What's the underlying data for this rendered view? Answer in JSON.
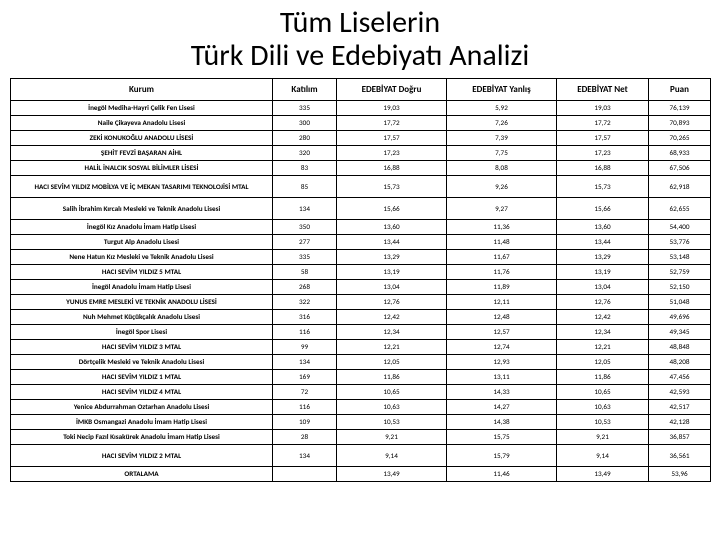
{
  "title": {
    "line1": "Tüm Liselerin",
    "line2": "Türk Dili ve Edebiyatı Analizi"
  },
  "table": {
    "columns": [
      "Kurum",
      "Katılım",
      "EDEBİYAT Doğru",
      "EDEBİYAT Yanlış",
      "EDEBİYAT Net",
      "Puan"
    ],
    "row_font_size": 7.2,
    "header_font_size": 9,
    "border_color": "#000000",
    "background_color": "#ffffff",
    "tall_rows": [
      5,
      6,
      22
    ],
    "rows": [
      [
        "İnegöl Mediha-Hayri Çelik Fen Lisesi",
        "335",
        "19,03",
        "5,92",
        "19,03",
        "76,139"
      ],
      [
        "Naile Çikayeva Anadolu Lisesi",
        "300",
        "17,72",
        "7,26",
        "17,72",
        "70,893"
      ],
      [
        "ZEKİ KONUKOĞLU ANADOLU LİSESİ",
        "280",
        "17,57",
        "7,39",
        "17,57",
        "70,265"
      ],
      [
        "ŞEHİT FEVZİ BAŞARAN AİHL",
        "320",
        "17,23",
        "7,75",
        "17,23",
        "68,933"
      ],
      [
        "HALİL İNALCIK SOSYAL BİLİMLER LİSESİ",
        "83",
        "16,88",
        "8,08",
        "16,88",
        "67,506"
      ],
      [
        "HACI SEVİM YILDIZ MOBİLYA VE İÇ MEKAN TASARIMI TEKNOLOJİSİ MTAL",
        "85",
        "15,73",
        "9,26",
        "15,73",
        "62,918"
      ],
      [
        "Salih İbrahim Kırcalı Mesleki ve Teknik Anadolu Lisesi",
        "134",
        "15,66",
        "9,27",
        "15,66",
        "62,655"
      ],
      [
        "İnegöl Kız Anadolu İmam Hatip Lisesi",
        "350",
        "13,60",
        "11,36",
        "13,60",
        "54,400"
      ],
      [
        "Turgut Alp Anadolu Lisesi",
        "277",
        "13,44",
        "11,48",
        "13,44",
        "53,776"
      ],
      [
        "Nene Hatun Kız Mesleki ve Teknik Anadolu Lisesi",
        "335",
        "13,29",
        "11,67",
        "13,29",
        "53,148"
      ],
      [
        "HACI SEVİM YILDIZ 5 MTAL",
        "58",
        "13,19",
        "11,76",
        "13,19",
        "52,759"
      ],
      [
        "İnegöl Anadolu İmam Hatip Lisesi",
        "268",
        "13,04",
        "11,89",
        "13,04",
        "52,150"
      ],
      [
        "YUNUS EMRE MESLEKİ VE TEKNİK ANADOLU LİSESİ",
        "322",
        "12,76",
        "12,11",
        "12,76",
        "51,048"
      ],
      [
        "Nuh Mehmet Küçükçalık Anadolu Lisesi",
        "316",
        "12,42",
        "12,48",
        "12,42",
        "49,696"
      ],
      [
        "İnegöl Spor Lisesi",
        "116",
        "12,34",
        "12,57",
        "12,34",
        "49,345"
      ],
      [
        "HACI SEVİM YILDIZ 3 MTAL",
        "99",
        "12,21",
        "12,74",
        "12,21",
        "48,848"
      ],
      [
        "Dörtçelik Mesleki ve Teknik Anadolu Lisesi",
        "134",
        "12,05",
        "12,93",
        "12,05",
        "48,208"
      ],
      [
        "HACI SEVİM YILDIZ 1 MTAL",
        "169",
        "11,86",
        "13,11",
        "11,86",
        "47,456"
      ],
      [
        "HACI SEVİM YILDIZ 4 MTAL",
        "72",
        "10,65",
        "14,33",
        "10,65",
        "42,593"
      ],
      [
        "Yenice Abdurrahman Oztarhan Anadolu Lisesi",
        "116",
        "10,63",
        "14,27",
        "10,63",
        "42,517"
      ],
      [
        "İMKB Osmangazi Anadolu İmam Hatip Lisesi",
        "109",
        "10,53",
        "14,38",
        "10,53",
        "42,128"
      ],
      [
        "Toki Necip Fazıl Kısakürek Anadolu İmam Hatip Lisesi",
        "28",
        "9,21",
        "15,75",
        "9,21",
        "36,857"
      ],
      [
        "HACI SEVİM YILDIZ 2 MTAL",
        "134",
        "9,14",
        "15,79",
        "9,14",
        "36,561"
      ],
      [
        "ORTALAMA",
        "",
        "13,49",
        "11,46",
        "13,49",
        "53,96"
      ]
    ]
  }
}
